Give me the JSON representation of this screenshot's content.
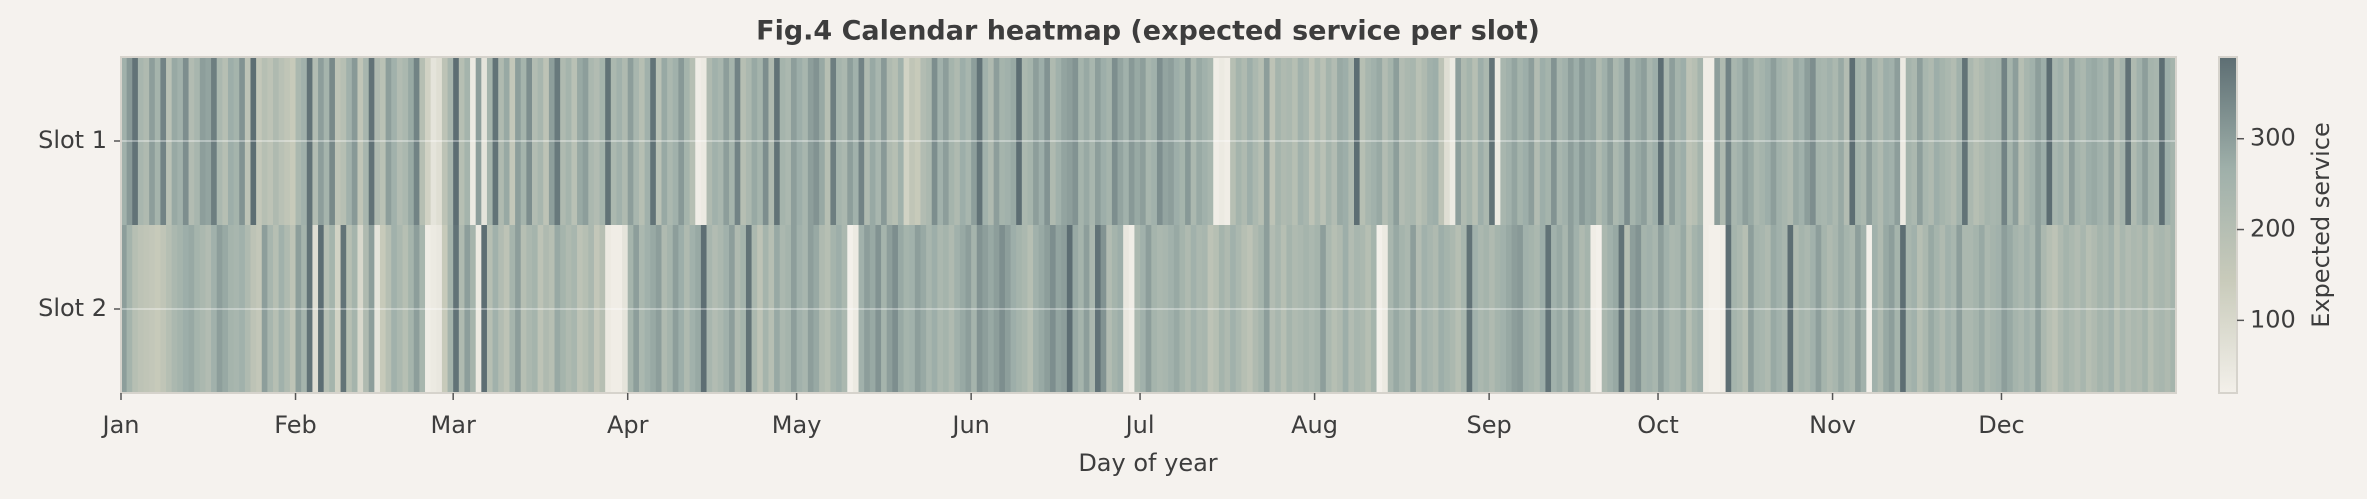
{
  "chart_data": {
    "type": "heatmap",
    "title": "Fig.4 Calendar heatmap (expected service per slot)",
    "xlabel": "Day of year",
    "colorbar_label": "Expected service",
    "categories": [
      "Slot 1",
      "Slot 2"
    ],
    "values": [
      [
        260,
        310,
        380,
        240,
        220,
        300,
        250,
        350,
        190,
        280,
        260,
        330,
        210,
        240,
        300,
        290,
        360,
        230,
        200,
        270,
        250,
        320,
        180,
        390,
        160,
        200,
        180,
        220,
        190,
        170,
        150,
        230,
        260,
        380,
        210,
        300,
        250,
        340,
        180,
        200,
        260,
        310,
        170,
        240,
        380,
        220,
        190,
        300,
        260,
        210,
        230,
        280,
        350,
        200,
        120,
        60,
        80,
        180,
        240,
        390,
        200,
        250,
        40,
        300,
        60,
        250,
        380,
        220,
        280,
        160,
        300,
        250,
        330,
        210,
        240,
        180,
        300,
        370,
        220,
        250,
        190,
        280,
        300,
        230,
        210,
        250,
        380,
        230,
        260,
        220,
        300,
        240,
        200,
        260,
        380,
        190,
        280,
        230,
        260,
        310,
        250,
        200,
        30,
        40,
        220,
        260,
        240,
        300,
        250,
        350,
        200,
        230,
        280,
        250,
        330,
        220,
        380,
        250,
        230,
        300,
        270,
        240,
        300,
        320,
        280,
        200,
        360,
        250,
        230,
        300,
        260,
        350,
        220,
        280,
        240,
        310,
        220,
        200,
        260,
        120,
        170,
        150,
        210,
        230,
        330,
        260,
        300,
        250,
        220,
        270,
        240,
        300,
        380,
        260,
        220,
        300,
        250,
        260,
        280,
        390,
        230,
        250,
        300,
        270,
        320,
        220,
        260,
        290,
        300,
        320,
        250,
        280,
        240,
        300,
        270,
        250,
        330,
        290,
        260,
        310,
        280,
        300,
        240,
        260,
        330,
        290,
        300,
        270,
        250,
        310,
        230,
        280,
        260,
        240,
        30,
        40,
        30,
        200,
        250,
        220,
        270,
        230,
        200,
        300,
        180,
        250,
        220,
        230,
        200,
        260,
        240,
        180,
        230,
        190,
        250,
        210,
        280,
        270,
        220,
        390,
        200,
        240,
        260,
        280,
        210,
        250,
        300,
        210,
        230,
        240,
        190,
        220,
        260,
        270,
        180,
        80,
        40,
        300,
        220,
        250,
        200,
        270,
        230,
        380,
        40,
        240,
        260,
        290,
        250,
        270,
        300,
        210,
        270,
        250,
        320,
        240,
        260,
        300,
        270,
        310,
        280,
        290,
        220,
        260,
        300,
        230,
        260,
        330,
        250,
        280,
        300,
        240,
        270,
        390,
        230,
        300,
        250,
        270,
        180,
        200,
        250,
        30,
        30,
        300,
        220,
        350,
        240,
        260,
        300,
        280,
        230,
        250,
        270,
        300,
        260,
        240,
        220,
        280,
        260,
        300,
        330,
        250,
        240,
        260,
        230,
        280,
        210,
        390,
        250,
        230,
        300,
        250,
        220,
        270,
        260,
        300,
        40,
        250,
        230,
        300,
        240,
        220,
        270,
        250,
        230,
        210,
        260,
        380,
        230,
        200,
        220,
        250,
        240,
        250,
        350,
        250,
        300,
        200,
        240,
        260,
        300,
        270,
        390,
        240,
        260,
        220,
        300,
        250,
        230,
        270,
        280,
        260,
        240,
        300,
        210,
        250,
        380,
        220,
        260,
        300,
        250,
        240,
        390,
        270,
        250
      ],
      [
        300,
        250,
        200,
        180,
        170,
        160,
        150,
        170,
        200,
        230,
        250,
        270,
        280,
        250,
        230,
        210,
        260,
        300,
        280,
        250,
        240,
        260,
        220,
        180,
        160,
        300,
        240,
        200,
        260,
        220,
        180,
        300,
        250,
        380,
        80,
        390,
        200,
        250,
        120,
        380,
        200,
        250,
        100,
        220,
        300,
        60,
        150,
        200,
        260,
        230,
        200,
        250,
        300,
        240,
        30,
        40,
        50,
        150,
        250,
        380,
        220,
        300,
        250,
        40,
        390,
        200,
        260,
        210,
        180,
        250,
        300,
        200,
        230,
        250,
        180,
        220,
        200,
        280,
        250,
        220,
        240,
        180,
        200,
        230,
        160,
        200,
        40,
        30,
        30,
        60,
        250,
        300,
        230,
        260,
        280,
        300,
        220,
        250,
        300,
        270,
        220,
        260,
        280,
        390,
        240,
        210,
        230,
        260,
        300,
        220,
        250,
        380,
        230,
        180,
        250,
        200,
        280,
        230,
        250,
        300,
        260,
        240,
        300,
        280,
        220,
        200,
        250,
        270,
        230,
        20,
        40,
        260,
        300,
        280,
        320,
        250,
        300,
        330,
        280,
        250,
        260,
        300,
        280,
        240,
        270,
        230,
        250,
        220,
        260,
        280,
        300,
        250,
        320,
        300,
        280,
        300,
        330,
        300,
        270,
        250,
        230,
        200,
        260,
        280,
        300,
        330,
        290,
        300,
        390,
        280,
        250,
        300,
        230,
        380,
        320,
        210,
        250,
        270,
        50,
        30,
        230,
        260,
        300,
        250,
        230,
        240,
        260,
        280,
        250,
        220,
        260,
        230,
        240,
        180,
        200,
        250,
        220,
        260,
        230,
        200,
        180,
        220,
        250,
        300,
        210,
        240,
        200,
        250,
        220,
        230,
        250,
        230,
        250,
        300,
        230,
        200,
        220,
        270,
        210,
        240,
        230,
        200,
        250,
        20,
        40,
        240,
        280,
        250,
        230,
        300,
        210,
        260,
        240,
        220,
        270,
        250,
        230,
        200,
        240,
        380,
        260,
        230,
        250,
        220,
        250,
        260,
        280,
        300,
        310,
        260,
        250,
        230,
        270,
        380,
        260,
        280,
        240,
        300,
        260,
        220,
        250,
        30,
        20,
        230,
        260,
        280,
        380,
        200,
        300,
        320,
        250,
        260,
        240,
        300,
        260,
        230,
        240,
        280,
        200,
        250,
        270,
        30,
        20,
        20,
        30,
        390,
        250,
        230,
        200,
        300,
        250,
        240,
        220,
        280,
        260,
        240,
        390,
        220,
        250,
        230,
        260,
        300,
        250,
        220,
        240,
        280,
        250,
        230,
        300,
        260,
        20,
        260,
        220,
        280,
        300,
        250,
        390,
        240,
        260,
        200,
        230,
        280,
        250,
        220,
        260,
        240,
        300,
        230,
        230,
        250,
        280,
        230,
        250,
        260,
        300,
        280,
        250,
        230,
        260,
        240,
        300,
        230,
        200,
        180,
        220,
        250,
        230,
        210,
        240,
        200,
        220,
        250,
        230,
        260,
        200,
        240,
        210,
        230,
        220,
        250,
        200,
        230,
        240,
        220,
        250
      ]
    ],
    "xlim": [
      0,
      365
    ],
    "xticks": [
      {
        "value": 0,
        "label": "Jan"
      },
      {
        "value": 31,
        "label": "Feb"
      },
      {
        "value": 59,
        "label": "Mar"
      },
      {
        "value": 90,
        "label": "Apr"
      },
      {
        "value": 120,
        "label": "May"
      },
      {
        "value": 151,
        "label": "Jun"
      },
      {
        "value": 181,
        "label": "Jul"
      },
      {
        "value": 212,
        "label": "Aug"
      },
      {
        "value": 243,
        "label": "Sep"
      },
      {
        "value": 273,
        "label": "Oct"
      },
      {
        "value": 304,
        "label": "Nov"
      },
      {
        "value": 334,
        "label": "Dec"
      }
    ],
    "clim": [
      20,
      390
    ],
    "cticks": [
      100,
      200,
      300
    ],
    "colormap": [
      "#f3f0ea",
      "#c9cbbb",
      "#9fb0aa",
      "#5d6e73"
    ],
    "grid": true
  }
}
